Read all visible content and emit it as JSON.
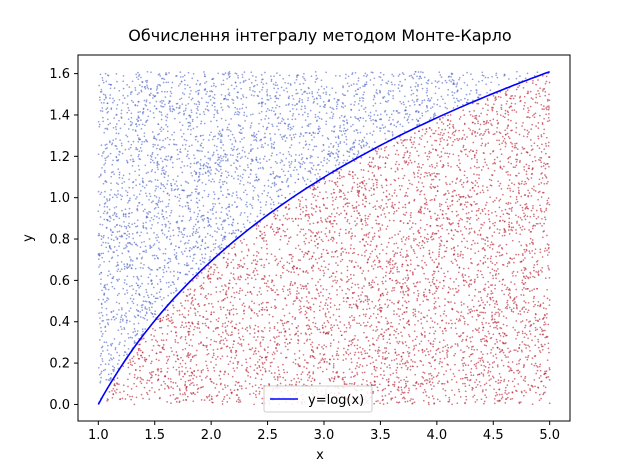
{
  "chart_data": {
    "type": "scatter",
    "title": "Обчислення інтегралу методом Монте-Карло",
    "xlabel": "x",
    "ylabel": "y",
    "xlim": [
      0.82,
      5.18
    ],
    "ylim": [
      -0.08,
      1.69
    ],
    "x_ticks": [
      "1.0",
      "1.5",
      "2.0",
      "2.5",
      "3.0",
      "3.5",
      "4.0",
      "4.5",
      "5.0"
    ],
    "y_ticks": [
      "0.0",
      "0.2",
      "0.4",
      "0.6",
      "0.8",
      "1.0",
      "1.2",
      "1.4",
      "1.6"
    ],
    "grid": false,
    "legend_position": "bottom-center",
    "sampling": {
      "x_range": [
        1.0,
        5.0
      ],
      "y_range": [
        0.0,
        1.6094
      ]
    },
    "series": [
      {
        "kind": "scatter",
        "role": "below_curve",
        "color": "#b2182b"
      },
      {
        "kind": "scatter",
        "role": "above_curve",
        "color": "#4a5fc1"
      },
      {
        "kind": "line",
        "name": "y=log(x)",
        "color": "#0000ff",
        "x": [
          1.0,
          1.25,
          1.5,
          1.75,
          2.0,
          2.5,
          3.0,
          3.5,
          4.0,
          4.5,
          5.0
        ],
        "y": [
          0.0,
          0.2231,
          0.4055,
          0.5596,
          0.6931,
          0.9163,
          1.0986,
          1.2528,
          1.3863,
          1.5041,
          1.6094
        ]
      }
    ]
  }
}
